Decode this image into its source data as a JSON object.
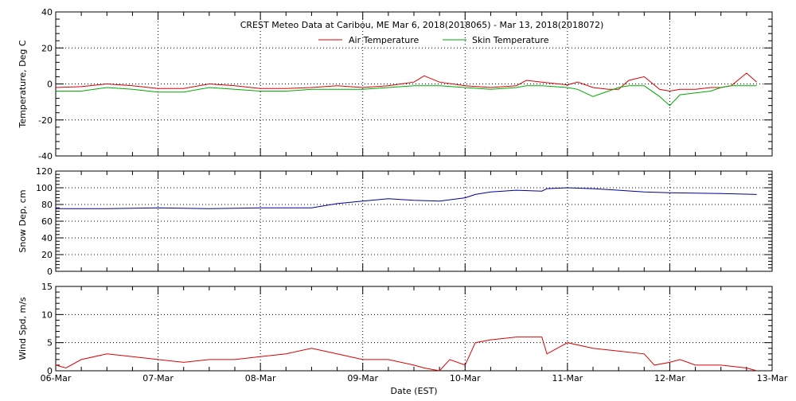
{
  "chart_data": {
    "type": "line",
    "title": "CREST Meteo Data at Caribou, ME   Mar  6, 2018(2018065) - Mar 13, 2018(2018072)",
    "xlabel": "Date (EST)",
    "x_tick_labels": [
      "06-Mar",
      "07-Mar",
      "08-Mar",
      "09-Mar",
      "10-Mar",
      "11-Mar",
      "12-Mar",
      "13-Mar"
    ],
    "xlim": [
      0,
      7
    ],
    "grid": true,
    "legend_position": "top-center",
    "colors": {
      "air": "#dd0000",
      "skin": "#00aa00",
      "snow": "#000099",
      "wind": "#dd0000"
    },
    "panels": [
      {
        "ylabel": "Temperature, Deg C",
        "ylim": [
          -40,
          40
        ],
        "y_ticks": [
          "-40",
          "-20",
          "0",
          "20",
          "40"
        ],
        "series": [
          {
            "name": "Air Temperature",
            "x": [
              0,
              0.25,
              0.5,
              0.75,
              1.0,
              1.25,
              1.5,
              1.75,
              2.0,
              2.25,
              2.5,
              2.75,
              3.0,
              3.25,
              3.5,
              3.6,
              3.75,
              4.0,
              4.25,
              4.5,
              4.6,
              4.75,
              5.0,
              5.1,
              5.25,
              5.4,
              5.5,
              5.6,
              5.75,
              5.9,
              6.0,
              6.1,
              6.25,
              6.4,
              6.5,
              6.6,
              6.75,
              6.85
            ],
            "values": [
              -2,
              -1.5,
              0,
              -1,
              -2.5,
              -2.5,
              0,
              -1,
              -2.5,
              -2.5,
              -2,
              -1,
              -2,
              -1,
              1,
              4.5,
              1,
              -1,
              -2,
              -1,
              2,
              1,
              -0.5,
              1,
              -2,
              -3,
              -3,
              2,
              4,
              -3,
              -4,
              -3,
              -3,
              -2,
              -2,
              -1,
              6,
              1
            ]
          },
          {
            "name": "Skin Temperature",
            "x": [
              0,
              0.25,
              0.5,
              0.75,
              1.0,
              1.25,
              1.5,
              1.75,
              2.0,
              2.25,
              2.5,
              2.75,
              3.0,
              3.25,
              3.5,
              3.6,
              3.75,
              4.0,
              4.25,
              4.5,
              4.6,
              4.75,
              5.0,
              5.1,
              5.25,
              5.4,
              5.5,
              5.6,
              5.75,
              5.9,
              6.0,
              6.1,
              6.25,
              6.4,
              6.5,
              6.6,
              6.75,
              6.85
            ],
            "values": [
              -4,
              -4,
              -2,
              -3,
              -4.5,
              -4.5,
              -2,
              -3,
              -4,
              -4,
              -3,
              -3,
              -3,
              -2,
              -1,
              -1,
              -1,
              -2,
              -3,
              -2,
              -1,
              -1,
              -2,
              -3,
              -7,
              -4,
              -2,
              -1,
              -1,
              -7,
              -12,
              -6,
              -5,
              -4,
              -2,
              -1,
              -1,
              -1
            ]
          }
        ]
      },
      {
        "ylabel": "Snow Dep, cm",
        "ylim": [
          0,
          120
        ],
        "y_ticks": [
          "0",
          "20",
          "40",
          "60",
          "80",
          "100",
          "120"
        ],
        "series": [
          {
            "name": "",
            "x": [
              0,
              0.5,
              1.0,
              1.5,
              2.0,
              2.5,
              2.75,
              3.0,
              3.25,
              3.5,
              3.75,
              4.0,
              4.1,
              4.25,
              4.5,
              4.75,
              4.8,
              5.0,
              5.25,
              5.5,
              5.75,
              6.0,
              6.5,
              6.85
            ],
            "values": [
              75,
              75,
              76,
              75,
              76,
              76,
              81,
              84,
              87,
              85,
              84,
              88,
              92,
              95,
              97,
              96,
              99,
              100,
              99,
              97,
              95,
              94,
              93,
              92
            ]
          }
        ]
      },
      {
        "ylabel": "Wind Spd, m/s",
        "ylim": [
          0,
          15
        ],
        "y_ticks": [
          "0",
          "5",
          "10",
          "15"
        ],
        "series": [
          {
            "name": "",
            "x": [
              0,
              0.1,
              0.25,
              0.5,
              0.75,
              1.0,
              1.25,
              1.5,
              1.75,
              2.0,
              2.25,
              2.5,
              2.75,
              3.0,
              3.25,
              3.5,
              3.6,
              3.75,
              3.85,
              4.0,
              4.1,
              4.25,
              4.5,
              4.75,
              4.8,
              5.0,
              5.25,
              5.5,
              5.75,
              5.85,
              6.0,
              6.1,
              6.25,
              6.5,
              6.75,
              6.85
            ],
            "values": [
              1,
              0.5,
              2,
              3,
              2.5,
              2,
              1.5,
              2,
              2,
              2.5,
              3,
              4,
              3,
              2,
              2,
              1,
              0.5,
              0,
              2,
              1,
              5,
              5.5,
              6,
              6,
              3,
              5,
              4,
              3.5,
              3,
              1,
              1.5,
              2,
              1,
              1,
              0.5,
              0
            ]
          }
        ]
      }
    ]
  }
}
